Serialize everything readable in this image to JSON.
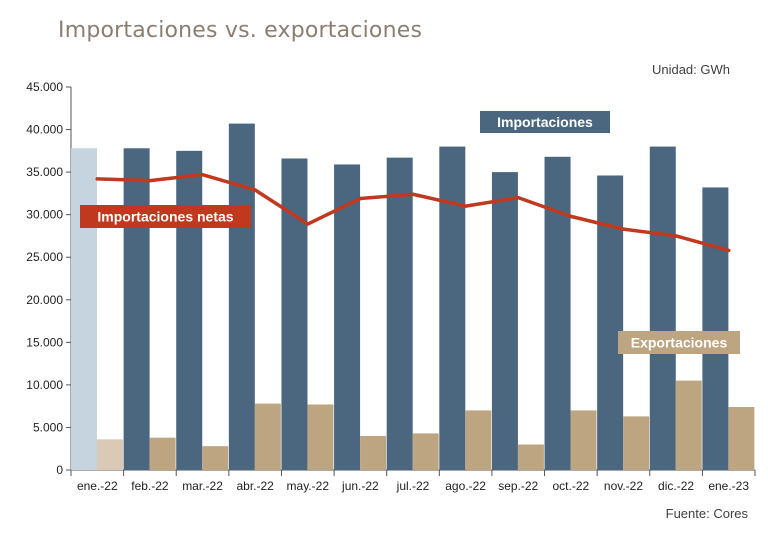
{
  "title": "Importaciones vs. exportaciones",
  "unit": "Unidad: GWh",
  "source": "Fuente: Cores",
  "colors": {
    "importaciones": "#4a677f",
    "importaciones_highlight": "#c5d4df",
    "exportaciones": "#bda582",
    "exportaciones_highlight": "#d9c9b5",
    "netas": "#c0391f",
    "axis": "#555555"
  },
  "chart_data": {
    "type": "bar",
    "categories": [
      "ene.-22",
      "feb.-22",
      "mar.-22",
      "abr.-22",
      "may.-22",
      "jun.-22",
      "jul.-22",
      "ago.-22",
      "sep.-22",
      "oct.-22",
      "nov.-22",
      "dic.-22",
      "ene.-23"
    ],
    "series": [
      {
        "name": "Importaciones",
        "type": "bar",
        "values": [
          37800,
          37800,
          37500,
          40700,
          36600,
          35900,
          36700,
          38000,
          35000,
          36800,
          34600,
          38000,
          33200
        ]
      },
      {
        "name": "Exportaciones",
        "type": "bar",
        "values": [
          3600,
          3800,
          2800,
          7800,
          7700,
          4000,
          4300,
          7000,
          3000,
          7000,
          6300,
          10500,
          7400
        ]
      },
      {
        "name": "Importaciones netas",
        "type": "line",
        "values": [
          34200,
          34000,
          34700,
          32900,
          28900,
          31900,
          32400,
          31000,
          32000,
          29800,
          28300,
          27500,
          25800
        ]
      }
    ],
    "yticks": [
      "0",
      "5.000",
      "10.000",
      "15.000",
      "20.000",
      "25.000",
      "30.000",
      "35.000",
      "40.000",
      "45.000"
    ],
    "ylim": [
      0,
      45000
    ],
    "grid": false,
    "legend": "inline-labels"
  }
}
